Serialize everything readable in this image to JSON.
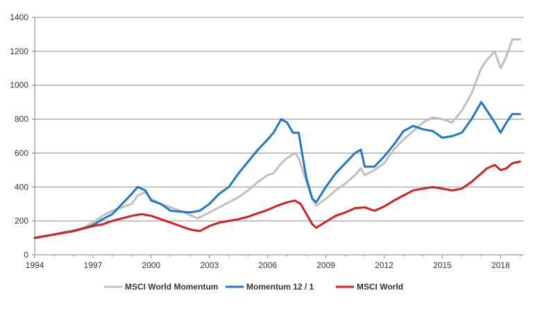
{
  "chart_data": {
    "type": "line",
    "title": "",
    "xlabel": "",
    "ylabel": "",
    "xlim": [
      1994,
      2019.2
    ],
    "ylim": [
      0,
      1400
    ],
    "grid": "horizontal",
    "legend_position": "bottom",
    "x_ticks": [
      1994,
      1997,
      2000,
      2003,
      2006,
      2009,
      2012,
      2015,
      2018
    ],
    "x_tick_labels": [
      "1994",
      "1997",
      "2000",
      "2003",
      "2006",
      "2009",
      "2012",
      "2015",
      "2018"
    ],
    "y_ticks": [
      0,
      200,
      400,
      600,
      800,
      1000,
      1200,
      1400
    ],
    "y_tick_labels": [
      "0",
      "200",
      "400",
      "600",
      "800",
      "1000",
      "1200",
      "1400"
    ],
    "series": [
      {
        "name": "MSCI World Momentum",
        "color": "#bfbfbf",
        "points": [
          [
            1994,
            100
          ],
          [
            1994.5,
            110
          ],
          [
            1995,
            120
          ],
          [
            1995.5,
            135
          ],
          [
            1996,
            145
          ],
          [
            1996.5,
            160
          ],
          [
            1997,
            190
          ],
          [
            1997.5,
            230
          ],
          [
            1998,
            260
          ],
          [
            1998.5,
            280
          ],
          [
            1999,
            300
          ],
          [
            1999.3,
            350
          ],
          [
            1999.7,
            370
          ],
          [
            2000,
            330
          ],
          [
            2000.5,
            300
          ],
          [
            2001,
            280
          ],
          [
            2001.5,
            260
          ],
          [
            2002,
            235
          ],
          [
            2002.4,
            215
          ],
          [
            2003,
            250
          ],
          [
            2003.5,
            280
          ],
          [
            2004,
            310
          ],
          [
            2004.5,
            340
          ],
          [
            2005,
            380
          ],
          [
            2005.5,
            430
          ],
          [
            2006,
            470
          ],
          [
            2006.3,
            480
          ],
          [
            2006.7,
            540
          ],
          [
            2007,
            570
          ],
          [
            2007.4,
            600
          ],
          [
            2007.6,
            570
          ],
          [
            2007.8,
            500
          ],
          [
            2008,
            430
          ],
          [
            2008.3,
            330
          ],
          [
            2008.5,
            290
          ],
          [
            2009,
            330
          ],
          [
            2009.5,
            380
          ],
          [
            2010,
            420
          ],
          [
            2010.5,
            470
          ],
          [
            2010.8,
            510
          ],
          [
            2011,
            470
          ],
          [
            2011.5,
            500
          ],
          [
            2012,
            540
          ],
          [
            2012.5,
            620
          ],
          [
            2013,
            680
          ],
          [
            2013.5,
            730
          ],
          [
            2014,
            780
          ],
          [
            2014.5,
            810
          ],
          [
            2015,
            800
          ],
          [
            2015.5,
            780
          ],
          [
            2016,
            850
          ],
          [
            2016.5,
            950
          ],
          [
            2017,
            1100
          ],
          [
            2017.3,
            1150
          ],
          [
            2017.7,
            1200
          ],
          [
            2018,
            1100
          ],
          [
            2018.3,
            1170
          ],
          [
            2018.6,
            1270
          ],
          [
            2019,
            1270
          ]
        ]
      },
      {
        "name": "Momentum 12 / 1",
        "color": "#1f77c8",
        "points": [
          [
            1994,
            100
          ],
          [
            1994.5,
            110
          ],
          [
            1995,
            120
          ],
          [
            1995.5,
            130
          ],
          [
            1996,
            140
          ],
          [
            1996.5,
            155
          ],
          [
            1997,
            175
          ],
          [
            1997.5,
            210
          ],
          [
            1998,
            240
          ],
          [
            1998.5,
            300
          ],
          [
            1999,
            360
          ],
          [
            1999.3,
            400
          ],
          [
            1999.7,
            380
          ],
          [
            2000,
            320
          ],
          [
            2000.5,
            300
          ],
          [
            2001,
            260
          ],
          [
            2001.5,
            255
          ],
          [
            2002,
            250
          ],
          [
            2002.5,
            260
          ],
          [
            2003,
            300
          ],
          [
            2003.5,
            360
          ],
          [
            2004,
            400
          ],
          [
            2004.5,
            480
          ],
          [
            2005,
            550
          ],
          [
            2005.5,
            620
          ],
          [
            2006,
            680
          ],
          [
            2006.3,
            720
          ],
          [
            2006.7,
            800
          ],
          [
            2007,
            780
          ],
          [
            2007.3,
            720
          ],
          [
            2007.6,
            720
          ],
          [
            2007.8,
            580
          ],
          [
            2008,
            450
          ],
          [
            2008.3,
            330
          ],
          [
            2008.5,
            310
          ],
          [
            2009,
            400
          ],
          [
            2009.5,
            480
          ],
          [
            2010,
            540
          ],
          [
            2010.5,
            600
          ],
          [
            2010.8,
            620
          ],
          [
            2011,
            520
          ],
          [
            2011.5,
            520
          ],
          [
            2012,
            580
          ],
          [
            2012.5,
            650
          ],
          [
            2013,
            730
          ],
          [
            2013.5,
            760
          ],
          [
            2014,
            740
          ],
          [
            2014.5,
            730
          ],
          [
            2015,
            690
          ],
          [
            2015.5,
            700
          ],
          [
            2016,
            720
          ],
          [
            2016.5,
            800
          ],
          [
            2017,
            900
          ],
          [
            2017.3,
            850
          ],
          [
            2017.7,
            780
          ],
          [
            2018,
            720
          ],
          [
            2018.3,
            780
          ],
          [
            2018.6,
            830
          ],
          [
            2019,
            830
          ]
        ]
      },
      {
        "name": "MSCI World",
        "color": "#d61f1f",
        "points": [
          [
            1994,
            100
          ],
          [
            1994.5,
            110
          ],
          [
            1995,
            120
          ],
          [
            1995.5,
            130
          ],
          [
            1996,
            140
          ],
          [
            1996.5,
            155
          ],
          [
            1997,
            170
          ],
          [
            1997.5,
            180
          ],
          [
            1998,
            200
          ],
          [
            1998.5,
            215
          ],
          [
            1999,
            230
          ],
          [
            1999.5,
            240
          ],
          [
            2000,
            230
          ],
          [
            2000.5,
            210
          ],
          [
            2001,
            190
          ],
          [
            2001.5,
            170
          ],
          [
            2002,
            150
          ],
          [
            2002.5,
            140
          ],
          [
            2003,
            170
          ],
          [
            2003.5,
            190
          ],
          [
            2004,
            200
          ],
          [
            2004.5,
            210
          ],
          [
            2005,
            225
          ],
          [
            2005.5,
            245
          ],
          [
            2006,
            265
          ],
          [
            2006.5,
            290
          ],
          [
            2007,
            310
          ],
          [
            2007.4,
            320
          ],
          [
            2007.7,
            300
          ],
          [
            2008,
            240
          ],
          [
            2008.3,
            180
          ],
          [
            2008.5,
            160
          ],
          [
            2009,
            195
          ],
          [
            2009.5,
            230
          ],
          [
            2010,
            250
          ],
          [
            2010.5,
            275
          ],
          [
            2011,
            280
          ],
          [
            2011.5,
            260
          ],
          [
            2012,
            285
          ],
          [
            2012.5,
            320
          ],
          [
            2013,
            350
          ],
          [
            2013.5,
            380
          ],
          [
            2014,
            390
          ],
          [
            2014.5,
            400
          ],
          [
            2015,
            390
          ],
          [
            2015.5,
            380
          ],
          [
            2016,
            390
          ],
          [
            2016.5,
            430
          ],
          [
            2017,
            480
          ],
          [
            2017.3,
            510
          ],
          [
            2017.7,
            530
          ],
          [
            2018,
            500
          ],
          [
            2018.3,
            510
          ],
          [
            2018.6,
            540
          ],
          [
            2019,
            550
          ]
        ]
      }
    ]
  }
}
